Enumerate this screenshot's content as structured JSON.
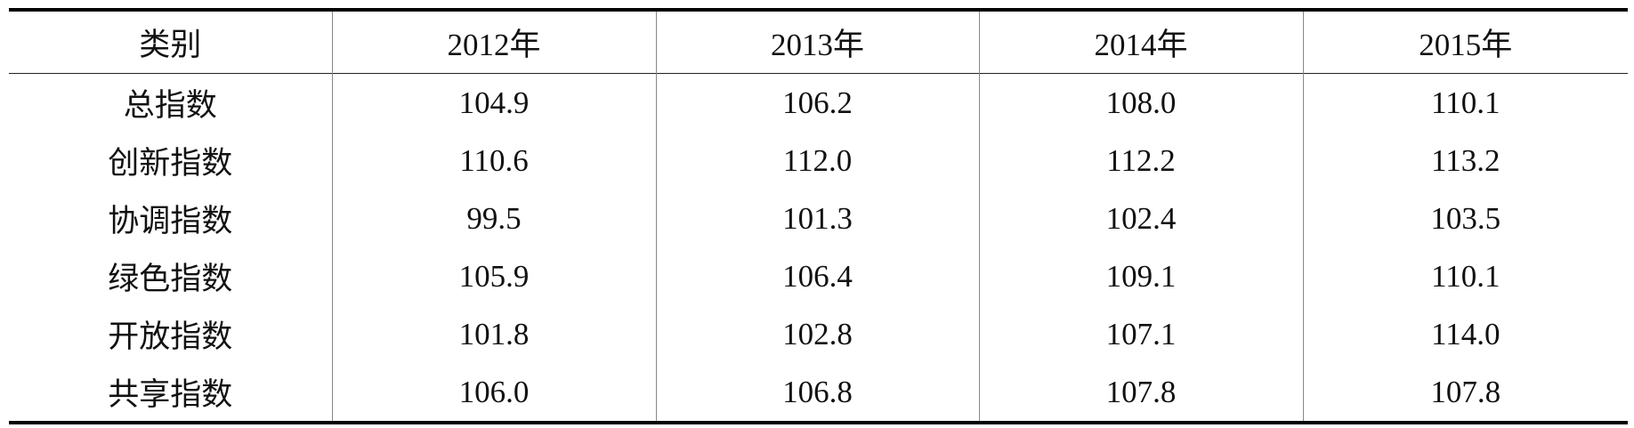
{
  "table": {
    "headers": [
      "类别",
      "2012年",
      "2013年",
      "2014年",
      "2015年"
    ],
    "rows": [
      [
        "总指数",
        "104.9",
        "106.2",
        "108.0",
        "110.1"
      ],
      [
        "创新指数",
        "110.6",
        "112.0",
        "112.2",
        "113.2"
      ],
      [
        "协调指数",
        "99.5",
        "101.3",
        "102.4",
        "103.5"
      ],
      [
        "绿色指数",
        "105.9",
        "106.4",
        "109.1",
        "110.1"
      ],
      [
        "开放指数",
        "101.8",
        "102.8",
        "107.1",
        "114.0"
      ],
      [
        "共享指数",
        "106.0",
        "106.8",
        "107.8",
        "107.8"
      ]
    ]
  }
}
